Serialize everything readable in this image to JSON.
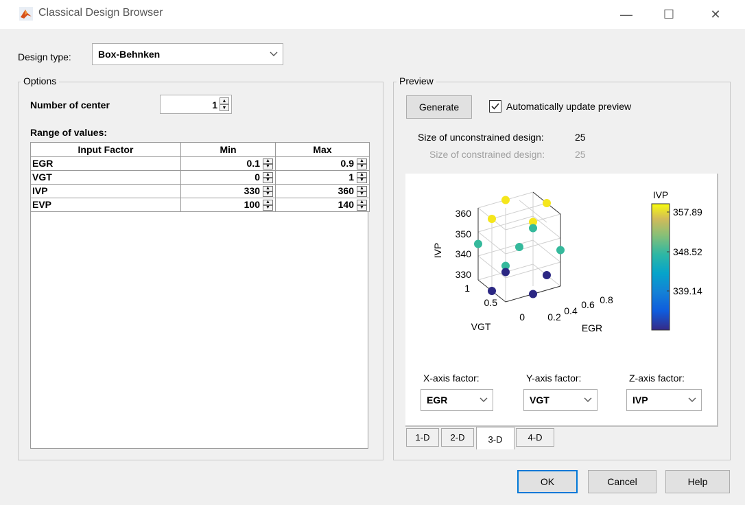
{
  "window": {
    "title": "Classical Design Browser"
  },
  "design_type": {
    "label": "Design type:",
    "value": "Box-Behnken"
  },
  "options": {
    "title": "Options",
    "num_center_label": "Number of center",
    "num_center_value": "1",
    "range_label": "Range of values:",
    "table": {
      "headers": [
        "Input Factor",
        "Min",
        "Max"
      ],
      "rows": [
        {
          "factor": "EGR",
          "min": "0.1",
          "max": "0.9"
        },
        {
          "factor": "VGT",
          "min": "0",
          "max": "1"
        },
        {
          "factor": "IVP",
          "min": "330",
          "max": "360"
        },
        {
          "factor": "EVP",
          "min": "100",
          "max": "140"
        }
      ]
    }
  },
  "preview": {
    "title": "Preview",
    "generate_label": "Generate",
    "auto_update_label": "Automatically update preview",
    "auto_update_checked": true,
    "unconstrained_label": "Size of unconstrained design:",
    "unconstrained_value": "25",
    "constrained_label": "Size of constrained design:",
    "constrained_value": "25",
    "plot": {
      "z_label": "IVP",
      "z_ticks": [
        "360",
        "350",
        "340",
        "330"
      ],
      "y_label": "VGT",
      "y_ticks": [
        "1",
        "0.5",
        "0"
      ],
      "x_label": "EGR",
      "x_ticks": [
        "0.2",
        "0.4",
        "0.6",
        "0.8"
      ],
      "colorbar_title": "IVP",
      "colorbar_ticks": [
        "357.89",
        "348.52",
        "339.14"
      ]
    },
    "axis_factors": {
      "x_label": "X-axis factor:",
      "x_value": "EGR",
      "y_label": "Y-axis factor:",
      "y_value": "VGT",
      "z_label": "Z-axis factor:",
      "z_value": "IVP"
    },
    "tabs": [
      "1-D",
      "2-D",
      "3-D",
      "4-D"
    ],
    "active_tab": "3-D"
  },
  "buttons": {
    "ok": "OK",
    "cancel": "Cancel",
    "help": "Help"
  },
  "colors": {
    "yellow": "#f5e61c",
    "teal": "#35b99c",
    "navy": "#2b2783",
    "accent": "#0078d7"
  },
  "chart_data": {
    "type": "scatter",
    "title": "",
    "xlabel": "EGR",
    "ylabel": "VGT",
    "zlabel": "IVP",
    "xlim": [
      0.1,
      0.9
    ],
    "ylim": [
      0,
      1
    ],
    "zlim": [
      330,
      360
    ],
    "points": [
      {
        "x": 0.1,
        "y": 0,
        "z": 345
      },
      {
        "x": 0.9,
        "y": 0,
        "z": 345
      },
      {
        "x": 0.1,
        "y": 1,
        "z": 345
      },
      {
        "x": 0.9,
        "y": 1,
        "z": 345
      },
      {
        "x": 0.1,
        "y": 0.5,
        "z": 330
      },
      {
        "x": 0.9,
        "y": 0.5,
        "z": 330
      },
      {
        "x": 0.1,
        "y": 0.5,
        "z": 360
      },
      {
        "x": 0.9,
        "y": 0.5,
        "z": 360
      },
      {
        "x": 0.5,
        "y": 0,
        "z": 330
      },
      {
        "x": 0.5,
        "y": 1,
        "z": 330
      },
      {
        "x": 0.5,
        "y": 0,
        "z": 360
      },
      {
        "x": 0.5,
        "y": 1,
        "z": 360
      },
      {
        "x": 0.5,
        "y": 0.5,
        "z": 345
      }
    ]
  }
}
